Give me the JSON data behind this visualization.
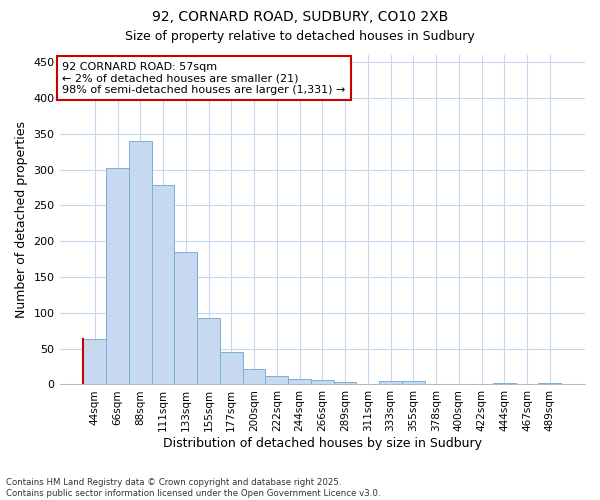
{
  "title_line1": "92, CORNARD ROAD, SUDBURY, CO10 2XB",
  "title_line2": "Size of property relative to detached houses in Sudbury",
  "xlabel": "Distribution of detached houses by size in Sudbury",
  "ylabel": "Number of detached properties",
  "categories": [
    "44sqm",
    "66sqm",
    "88sqm",
    "111sqm",
    "133sqm",
    "155sqm",
    "177sqm",
    "200sqm",
    "222sqm",
    "244sqm",
    "266sqm",
    "289sqm",
    "311sqm",
    "333sqm",
    "355sqm",
    "378sqm",
    "400sqm",
    "422sqm",
    "444sqm",
    "467sqm",
    "489sqm"
  ],
  "values": [
    63,
    302,
    340,
    278,
    185,
    93,
    46,
    22,
    12,
    8,
    6,
    4,
    0,
    5,
    5,
    0,
    0,
    0,
    2,
    0,
    2
  ],
  "bar_color": "#c6d9f0",
  "bar_edge_color": "#7bafd4",
  "highlight_bar_index": 0,
  "highlight_edge_color": "#cc0000",
  "annotation_text": "92 CORNARD ROAD: 57sqm\n← 2% of detached houses are smaller (21)\n98% of semi-detached houses are larger (1,331) →",
  "annotation_box_color": "#ffffff",
  "annotation_box_edge": "#cc0000",
  "ylim": [
    0,
    460
  ],
  "yticks": [
    0,
    50,
    100,
    150,
    200,
    250,
    300,
    350,
    400,
    450
  ],
  "background_color": "#ffffff",
  "grid_color": "#c8d8f0",
  "footer_line1": "Contains HM Land Registry data © Crown copyright and database right 2025.",
  "footer_line2": "Contains public sector information licensed under the Open Government Licence v3.0."
}
